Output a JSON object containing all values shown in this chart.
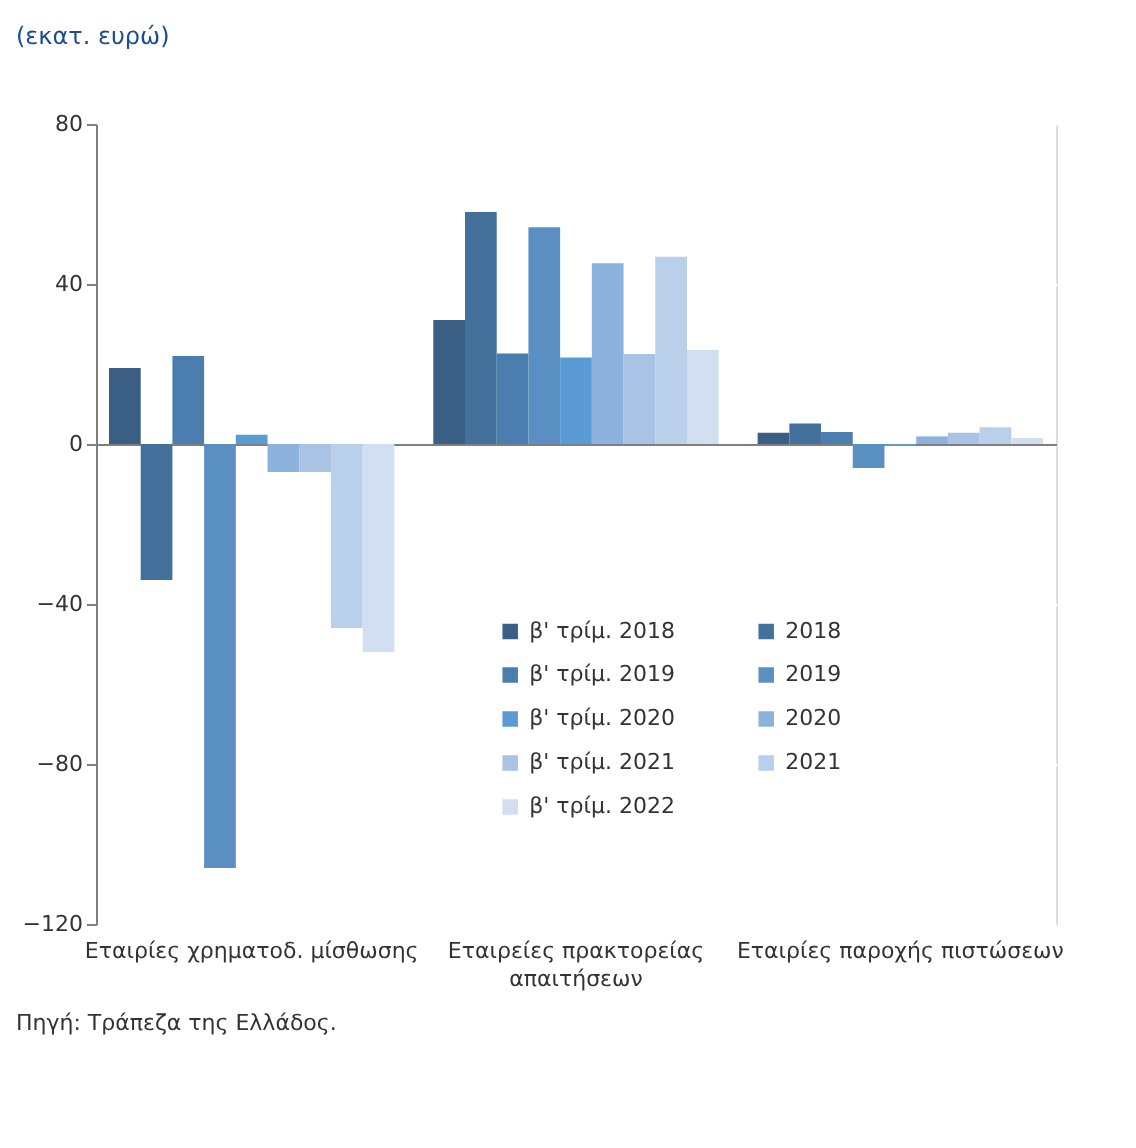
{
  "chart_data": {
    "type": "bar",
    "title": "(εκατ. ευρώ)",
    "categories": [
      "Εταιρίες χρηματοδ. μίσθωσης",
      "Εταιρείες πρακτορείας απαιτήσεων",
      "Εταιρίες παροχής πιστώσεων"
    ],
    "series": [
      {
        "name": "β' τρίμ. 2018",
        "color": "#3b5e84",
        "values": [
          19,
          31,
          2.8
        ]
      },
      {
        "name": "2018",
        "color": "#44709c",
        "values": [
          -34,
          58,
          5.1
        ]
      },
      {
        "name": "β' τρίμ. 2019",
        "color": "#4a7eaf",
        "values": [
          22,
          22.6,
          3
        ]
      },
      {
        "name": "2019",
        "color": "#5a8fc2",
        "values": [
          -106,
          54.2,
          -6
        ]
      },
      {
        "name": "β' τρίμ. 2020",
        "color": "#5b9bd5",
        "values": [
          2.3,
          21.6,
          -0.5
        ]
      },
      {
        "name": "2020",
        "color": "#8db2de",
        "values": [
          -7,
          45.2,
          1.9
        ]
      },
      {
        "name": "β' τρίμ. 2021",
        "color": "#a9c3e4",
        "values": [
          -7,
          22.5,
          2.8
        ]
      },
      {
        "name": "2021",
        "color": "#bad0ea",
        "values": [
          -46,
          46.8,
          4.2
        ]
      },
      {
        "name": "β' τρίμ. 2022",
        "color": "#d2dff0",
        "values": [
          -52,
          23.5,
          1.5
        ]
      }
    ],
    "ylim": [
      -120,
      80
    ],
    "yticks": [
      -120,
      -80,
      -40,
      0,
      40,
      80
    ],
    "grid": "y",
    "legend": "bottom right",
    "annotations": [
      "Πηγή: Τράπεζα της Ελλάδος."
    ]
  }
}
